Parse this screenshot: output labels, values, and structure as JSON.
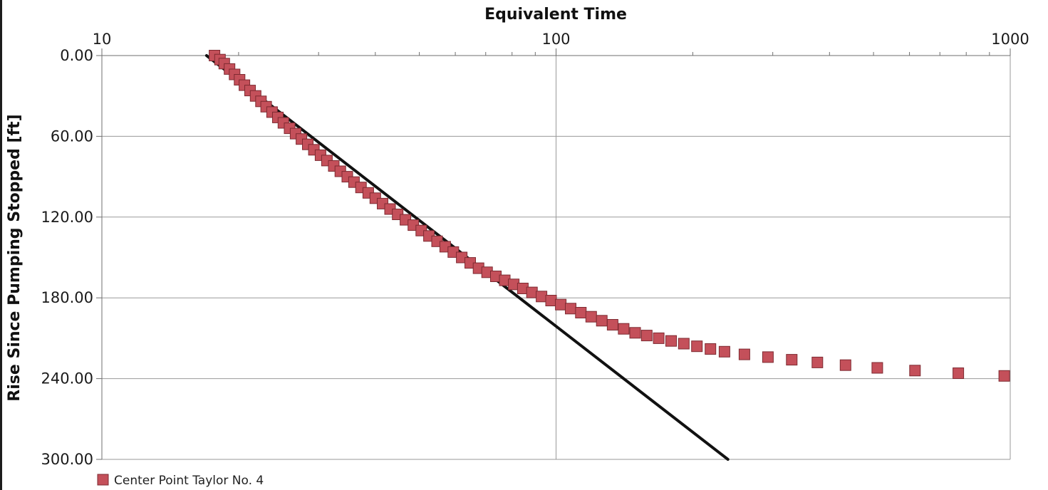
{
  "chart_data": {
    "type": "scatter",
    "xlabel": "Equivalent Time",
    "ylabel": "Rise Since Pumping Stopped [ft]",
    "x_scale": "log",
    "xlim": [
      10,
      1000
    ],
    "ylim": [
      0,
      300
    ],
    "y_inverted": true,
    "x_tick_labels": [
      "10",
      "100",
      "1000"
    ],
    "y_tick_labels": [
      "0.00",
      "60.00",
      "120.00",
      "180.00",
      "240.00",
      "300.00"
    ],
    "grid": true,
    "legend_position": "bottom-left",
    "colors": {
      "marker_fill": "#c4505a",
      "marker_edge": "#7e2a31",
      "fit_line": "#111111"
    },
    "series": [
      {
        "name": "Center Point Taylor No. 4",
        "marker": "square",
        "x": [
          17.7,
          18.2,
          18.6,
          19.1,
          19.6,
          20.1,
          20.6,
          21.2,
          21.8,
          22.4,
          23.0,
          23.7,
          24.4,
          25.1,
          25.9,
          26.7,
          27.5,
          28.4,
          29.3,
          30.3,
          31.3,
          32.4,
          33.5,
          34.7,
          35.9,
          37.2,
          38.6,
          40.0,
          41.5,
          43.1,
          44.8,
          46.6,
          48.5,
          50.5,
          52.5,
          54.7,
          57.0,
          59.4,
          62.0,
          64.7,
          67.5,
          70.5,
          73.7,
          77.1,
          80.7,
          84.5,
          88.5,
          92.9,
          97.5,
          102.4,
          107.7,
          113.4,
          119.5,
          126.1,
          133.2,
          140.9,
          149.3,
          158.4,
          168.3,
          179.2,
          191.1,
          204.2,
          218.7,
          234.9,
          259.9,
          292.8,
          330.3,
          376.2,
          433.8,
          509.6,
          617.0,
          768.6,
          970.0
        ],
        "y": [
          0,
          3,
          6,
          10,
          14,
          18,
          22,
          26,
          30,
          34,
          38,
          42,
          46,
          50,
          54,
          58,
          62,
          66,
          70,
          74,
          78,
          82,
          86,
          90,
          94,
          98,
          102,
          106,
          110,
          114,
          118,
          122,
          126,
          130,
          134,
          138,
          142,
          146,
          150,
          154,
          158,
          161,
          164,
          167,
          170,
          173,
          176,
          179,
          182,
          185,
          188,
          191,
          194,
          197,
          200,
          203,
          206,
          208,
          210,
          212,
          214,
          216,
          218,
          220,
          222,
          224,
          226,
          228,
          230,
          232,
          234,
          236,
          238
        ]
      },
      {
        "name": "",
        "type": "line",
        "x": [
          17.0,
          239.0
        ],
        "y": [
          0,
          300
        ]
      }
    ]
  }
}
